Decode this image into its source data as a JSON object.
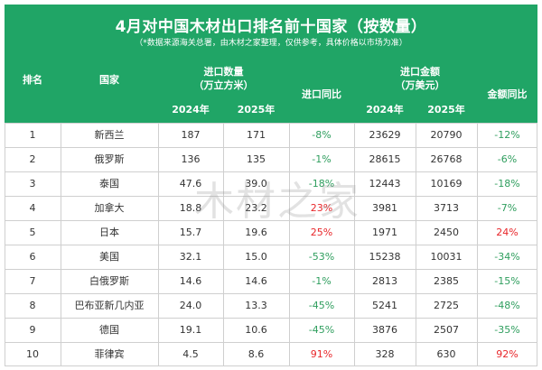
{
  "title": "4月对中国木材出口排名前十国家（按数量）",
  "subtitle": "（*数据来源海关总署，由木材之家整理，仅供参考，具体价格以市场为准）",
  "watermark": "木材之家",
  "headers": {
    "rank": "排名",
    "country": "国家",
    "import_volume": "进口数量",
    "import_volume_unit": "（万立方米）",
    "volume_yoy": "进口同比",
    "import_value": "进口金额",
    "import_value_unit": "（万美元）",
    "value_yoy": "金额同比",
    "year_2024": "2024年",
    "year_2025": "2025年"
  },
  "colors": {
    "header_bg": "#20a566",
    "positive": "#e8262a",
    "negative": "#2f9e5e"
  },
  "rows": [
    {
      "rank": "1",
      "country": "新西兰",
      "vol2024": "187",
      "vol2025": "171",
      "vol_yoy": "-8%",
      "val2024": "23629",
      "val2025": "20790",
      "val_yoy": "-12%"
    },
    {
      "rank": "2",
      "country": "俄罗斯",
      "vol2024": "136",
      "vol2025": "135",
      "vol_yoy": "-1%",
      "val2024": "28615",
      "val2025": "26768",
      "val_yoy": "-6%"
    },
    {
      "rank": "3",
      "country": "泰国",
      "vol2024": "47.6",
      "vol2025": "39.0",
      "vol_yoy": "-18%",
      "val2024": "12443",
      "val2025": "10169",
      "val_yoy": "-18%"
    },
    {
      "rank": "4",
      "country": "加拿大",
      "vol2024": "18.8",
      "vol2025": "23.2",
      "vol_yoy": "23%",
      "val2024": "3981",
      "val2025": "3713",
      "val_yoy": "-7%"
    },
    {
      "rank": "5",
      "country": "日本",
      "vol2024": "15.7",
      "vol2025": "19.6",
      "vol_yoy": "25%",
      "val2024": "1971",
      "val2025": "2450",
      "val_yoy": "24%"
    },
    {
      "rank": "6",
      "country": "美国",
      "vol2024": "32.1",
      "vol2025": "15.0",
      "vol_yoy": "-53%",
      "val2024": "15238",
      "val2025": "10031",
      "val_yoy": "-34%"
    },
    {
      "rank": "7",
      "country": "白俄罗斯",
      "vol2024": "14.6",
      "vol2025": "14.6",
      "vol_yoy": "-1%",
      "val2024": "2813",
      "val2025": "2385",
      "val_yoy": "-15%"
    },
    {
      "rank": "8",
      "country": "巴布亚新几内亚",
      "vol2024": "24.0",
      "vol2025": "13.3",
      "vol_yoy": "-45%",
      "val2024": "5241",
      "val2025": "2725",
      "val_yoy": "-48%"
    },
    {
      "rank": "9",
      "country": "德国",
      "vol2024": "19.1",
      "vol2025": "10.6",
      "vol_yoy": "-45%",
      "val2024": "3876",
      "val2025": "2507",
      "val_yoy": "-35%"
    },
    {
      "rank": "10",
      "country": "菲律宾",
      "vol2024": "4.5",
      "vol2025": "8.6",
      "vol_yoy": "91%",
      "val2024": "328",
      "val2025": "630",
      "val_yoy": "92%"
    }
  ]
}
